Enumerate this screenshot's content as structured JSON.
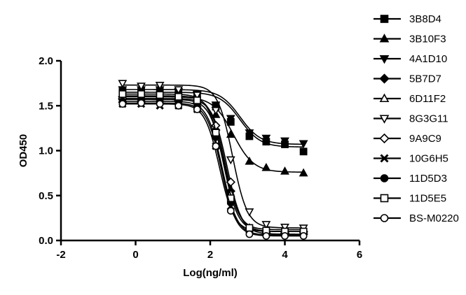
{
  "chart_data": {
    "type": "line",
    "title": "",
    "xlabel": "Log(ng/ml)",
    "ylabel": "OD450",
    "xlim": [
      -2,
      6
    ],
    "ylim": [
      0.0,
      2.0
    ],
    "xticks": [
      -2,
      0,
      2,
      4,
      6
    ],
    "yticks": [
      0.0,
      0.5,
      1.0,
      1.5,
      2.0
    ],
    "x_tick_labels": [
      "-2",
      "0",
      "2",
      "4",
      "6"
    ],
    "y_tick_labels": [
      "0.0",
      "0.5",
      "1.0",
      "1.5",
      "2.0"
    ],
    "x": [
      -0.35,
      0.15,
      0.65,
      1.15,
      1.65,
      2.15,
      2.55,
      3.05,
      3.5,
      4.0,
      4.5
    ],
    "legend_position": "right",
    "series": [
      {
        "name": "3B8D4",
        "marker": "square",
        "fit": {
          "bottom": 1.04,
          "top": 1.65,
          "logec50": 2.8,
          "hill": -1.6
        },
        "values": [
          1.66,
          1.66,
          1.66,
          1.64,
          1.62,
          1.49,
          1.32,
          1.16,
          1.1,
          1.07,
          0.99
        ]
      },
      {
        "name": "3B10F3",
        "marker": "triangle-up",
        "fit": {
          "bottom": 0.76,
          "top": 1.6,
          "logec50": 2.62,
          "hill": -1.6
        },
        "values": [
          1.6,
          1.6,
          1.6,
          1.58,
          1.55,
          1.4,
          1.18,
          0.88,
          0.81,
          0.77,
          0.75
        ]
      },
      {
        "name": "4A1D10",
        "marker": "triangle-down",
        "fit": {
          "bottom": 1.07,
          "top": 1.68,
          "logec50": 2.8,
          "hill": -1.6
        },
        "values": [
          1.68,
          1.68,
          1.68,
          1.66,
          1.63,
          1.51,
          1.36,
          1.2,
          1.14,
          1.11,
          1.08
        ]
      },
      {
        "name": "5B7D7",
        "marker": "diamond-filled",
        "fit": {
          "bottom": 0.1,
          "top": 1.61,
          "logec50": 2.4,
          "hill": -2.2
        },
        "values": [
          1.6,
          1.61,
          1.6,
          1.58,
          1.56,
          1.23,
          0.55,
          0.12,
          0.1,
          0.1,
          0.1
        ]
      },
      {
        "name": "6D11F2",
        "marker": "triangle-up-open",
        "fit": {
          "bottom": 0.12,
          "top": 1.57,
          "logec50": 2.38,
          "hill": -2.2
        },
        "values": [
          1.57,
          1.57,
          1.56,
          1.55,
          1.52,
          1.2,
          0.52,
          0.14,
          0.12,
          0.12,
          0.12
        ]
      },
      {
        "name": "8G3G11",
        "marker": "triangle-down-open",
        "fit": {
          "bottom": 0.14,
          "top": 1.73,
          "logec50": 2.6,
          "hill": -2.2
        },
        "values": [
          1.75,
          1.72,
          1.73,
          1.68,
          1.62,
          1.45,
          0.9,
          0.32,
          0.18,
          0.15,
          0.14
        ]
      },
      {
        "name": "9A9C9",
        "marker": "diamond-open",
        "fit": {
          "bottom": 0.07,
          "top": 1.58,
          "logec50": 2.45,
          "hill": -2.2
        },
        "values": [
          1.58,
          1.57,
          1.58,
          1.56,
          1.53,
          1.28,
          0.65,
          0.13,
          0.08,
          0.08,
          0.07
        ]
      },
      {
        "name": "10G6H5",
        "marker": "x",
        "fit": {
          "bottom": 0.1,
          "top": 1.52,
          "logec50": 2.25,
          "hill": -2.2
        },
        "values": [
          1.52,
          1.52,
          1.5,
          1.5,
          1.46,
          1.05,
          0.38,
          0.12,
          0.1,
          0.1,
          0.1
        ]
      },
      {
        "name": "11D5D3",
        "marker": "circle",
        "fit": {
          "bottom": 0.06,
          "top": 1.55,
          "logec50": 2.32,
          "hill": -2.2
        },
        "values": [
          1.55,
          1.55,
          1.55,
          1.53,
          1.49,
          1.15,
          0.42,
          0.1,
          0.07,
          0.06,
          0.06
        ]
      },
      {
        "name": "11D5E5",
        "marker": "square-open",
        "fit": {
          "bottom": 0.1,
          "top": 1.63,
          "logec50": 2.35,
          "hill": -2.2
        },
        "values": [
          1.63,
          1.63,
          1.62,
          1.6,
          1.56,
          1.2,
          0.47,
          0.14,
          0.11,
          0.1,
          0.1
        ]
      },
      {
        "name": "BS-M0220",
        "marker": "circle-open",
        "fit": {
          "bottom": 0.05,
          "top": 1.53,
          "logec50": 2.3,
          "hill": -2.2
        },
        "values": [
          1.52,
          1.53,
          1.52,
          1.5,
          1.46,
          1.05,
          0.33,
          0.07,
          0.05,
          0.05,
          0.05
        ]
      }
    ]
  }
}
